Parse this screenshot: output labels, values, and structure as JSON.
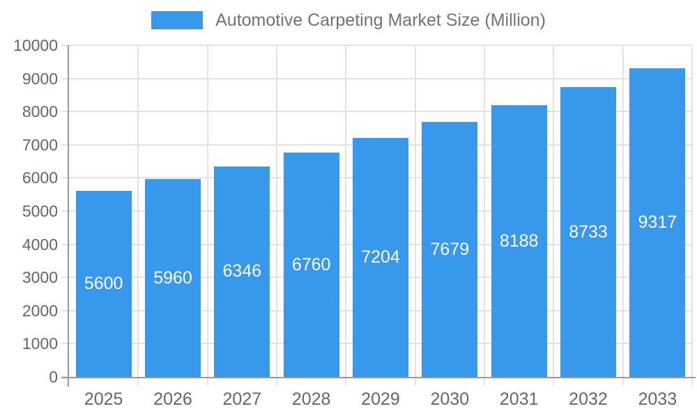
{
  "chart_data": {
    "type": "bar",
    "title": "Automotive Carpeting Market Size (Million)",
    "categories": [
      "2025",
      "2026",
      "2027",
      "2028",
      "2029",
      "2030",
      "2031",
      "2032",
      "2033"
    ],
    "values": [
      5600,
      5960,
      6346,
      6760,
      7204,
      7679,
      8188,
      8733,
      9317
    ],
    "xlabel": "",
    "ylabel": "",
    "ylim": [
      0,
      10000
    ],
    "ytick_step": 1000,
    "yticks": [
      0,
      1000,
      2000,
      3000,
      4000,
      5000,
      6000,
      7000,
      8000,
      9000,
      10000
    ],
    "grid": true,
    "bar_value_labels_inside": true,
    "legend_position": "top"
  },
  "colors": {
    "bar": "#3898EC",
    "bar_label": "#FFFFFF",
    "grid": "#E2E2E2",
    "axis": "#999999",
    "tick_label": "#666666",
    "legend_text": "#737373",
    "background": "#FFFFFF"
  }
}
